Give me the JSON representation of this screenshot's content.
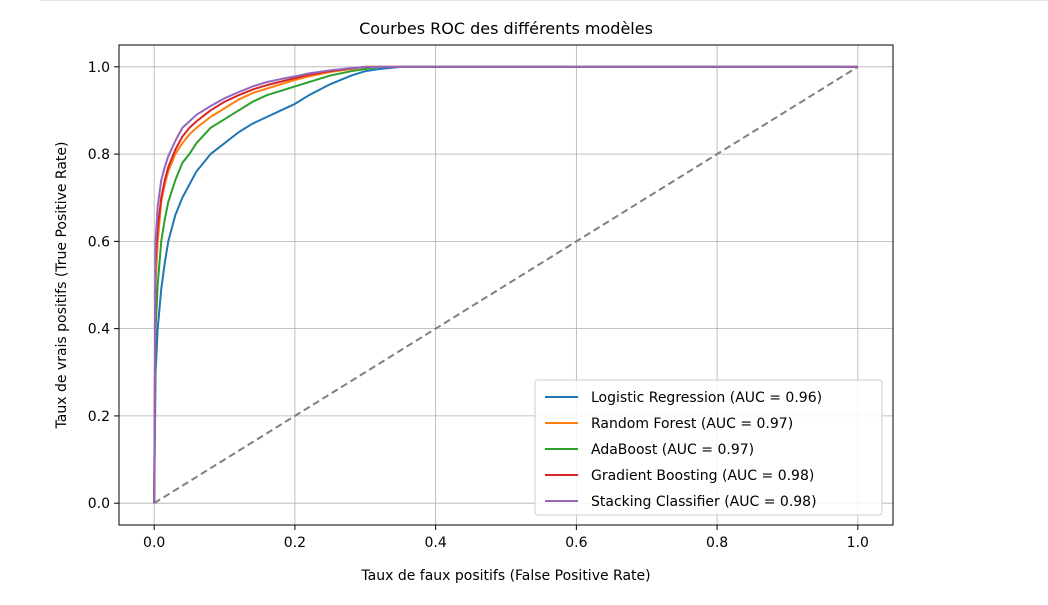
{
  "chart_data": {
    "type": "line",
    "title": "Courbes ROC des différents modèles",
    "xlabel": "Taux de faux positifs (False Positive Rate)",
    "ylabel": "Taux de vrais positifs (True Positive Rate)",
    "xlim": [
      -0.05,
      1.05
    ],
    "ylim": [
      -0.05,
      1.05
    ],
    "xticks": [
      0.0,
      0.2,
      0.4,
      0.6,
      0.8,
      1.0
    ],
    "yticks": [
      0.0,
      0.2,
      0.4,
      0.6,
      0.8,
      1.0
    ],
    "xtick_labels": [
      "0.0",
      "0.2",
      "0.4",
      "0.6",
      "0.8",
      "1.0"
    ],
    "ytick_labels": [
      "0.0",
      "0.2",
      "0.4",
      "0.6",
      "0.8",
      "1.0"
    ],
    "grid": true,
    "legend_position": "lower-right",
    "series": [
      {
        "name": "Logistic Regression (AUC = 0.96)",
        "color": "#1f77b4",
        "x": [
          0,
          0.002,
          0.005,
          0.01,
          0.015,
          0.02,
          0.03,
          0.04,
          0.05,
          0.06,
          0.07,
          0.08,
          0.1,
          0.12,
          0.14,
          0.16,
          0.18,
          0.2,
          0.22,
          0.25,
          0.28,
          0.3,
          0.32,
          0.35,
          0.4,
          0.5,
          0.6,
          0.7,
          0.8,
          0.9,
          1.0
        ],
        "y": [
          0,
          0.3,
          0.4,
          0.49,
          0.55,
          0.6,
          0.66,
          0.7,
          0.73,
          0.76,
          0.78,
          0.8,
          0.825,
          0.85,
          0.87,
          0.885,
          0.9,
          0.915,
          0.935,
          0.96,
          0.98,
          0.99,
          0.995,
          1.0,
          1.0,
          1.0,
          1.0,
          1.0,
          1.0,
          1.0,
          1.0
        ]
      },
      {
        "name": "Random Forest (AUC = 0.97)",
        "color": "#ff7f0e",
        "x": [
          0,
          0.002,
          0.005,
          0.01,
          0.015,
          0.02,
          0.03,
          0.04,
          0.05,
          0.06,
          0.08,
          0.1,
          0.12,
          0.14,
          0.16,
          0.18,
          0.2,
          0.22,
          0.25,
          0.28,
          0.3,
          0.35,
          0.4,
          0.5,
          0.6,
          0.7,
          0.8,
          0.9,
          1.0
        ],
        "y": [
          0,
          0.5,
          0.6,
          0.69,
          0.73,
          0.76,
          0.8,
          0.825,
          0.845,
          0.86,
          0.885,
          0.905,
          0.925,
          0.94,
          0.95,
          0.96,
          0.97,
          0.978,
          0.988,
          0.995,
          1.0,
          1.0,
          1.0,
          1.0,
          1.0,
          1.0,
          1.0,
          1.0,
          1.0
        ]
      },
      {
        "name": "AdaBoost (AUC = 0.97)",
        "color": "#2ca02c",
        "x": [
          0,
          0.002,
          0.005,
          0.01,
          0.015,
          0.02,
          0.03,
          0.04,
          0.05,
          0.06,
          0.08,
          0.1,
          0.12,
          0.14,
          0.16,
          0.18,
          0.2,
          0.22,
          0.25,
          0.28,
          0.3,
          0.32,
          0.35,
          0.4,
          0.5,
          0.6,
          0.7,
          0.8,
          0.9,
          1.0
        ],
        "y": [
          0,
          0.4,
          0.5,
          0.6,
          0.65,
          0.69,
          0.74,
          0.78,
          0.8,
          0.825,
          0.86,
          0.88,
          0.9,
          0.92,
          0.935,
          0.945,
          0.955,
          0.965,
          0.98,
          0.99,
          0.995,
          1.0,
          1.0,
          1.0,
          1.0,
          1.0,
          1.0,
          1.0,
          1.0,
          1.0
        ]
      },
      {
        "name": "Gradient Boosting (AUC = 0.98)",
        "color": "#d62728",
        "x": [
          0,
          0.002,
          0.005,
          0.01,
          0.015,
          0.02,
          0.03,
          0.04,
          0.05,
          0.06,
          0.08,
          0.1,
          0.12,
          0.14,
          0.16,
          0.18,
          0.2,
          0.22,
          0.25,
          0.28,
          0.3,
          0.35,
          0.4,
          0.5,
          0.6,
          0.7,
          0.8,
          0.9,
          1.0
        ],
        "y": [
          0,
          0.55,
          0.63,
          0.7,
          0.74,
          0.77,
          0.81,
          0.84,
          0.86,
          0.875,
          0.9,
          0.92,
          0.935,
          0.948,
          0.958,
          0.966,
          0.974,
          0.982,
          0.99,
          0.996,
          1.0,
          1.0,
          1.0,
          1.0,
          1.0,
          1.0,
          1.0,
          1.0,
          1.0
        ]
      },
      {
        "name": "Stacking Classifier (AUC = 0.98)",
        "color": "#9467bd",
        "x": [
          0,
          0.002,
          0.005,
          0.01,
          0.015,
          0.02,
          0.03,
          0.04,
          0.05,
          0.06,
          0.08,
          0.1,
          0.12,
          0.14,
          0.16,
          0.18,
          0.2,
          0.22,
          0.25,
          0.28,
          0.3,
          0.35,
          0.4,
          0.5,
          0.6,
          0.7,
          0.8,
          0.9,
          1.0
        ],
        "y": [
          0,
          0.6,
          0.68,
          0.74,
          0.77,
          0.795,
          0.83,
          0.86,
          0.875,
          0.89,
          0.91,
          0.928,
          0.942,
          0.955,
          0.965,
          0.972,
          0.978,
          0.985,
          0.992,
          0.997,
          1.0,
          1.0,
          1.0,
          1.0,
          1.0,
          1.0,
          1.0,
          1.0,
          1.0
        ]
      }
    ],
    "reference_line": {
      "style": "dashed",
      "color": "#808080",
      "x": [
        0,
        1
      ],
      "y": [
        0,
        1
      ]
    }
  }
}
